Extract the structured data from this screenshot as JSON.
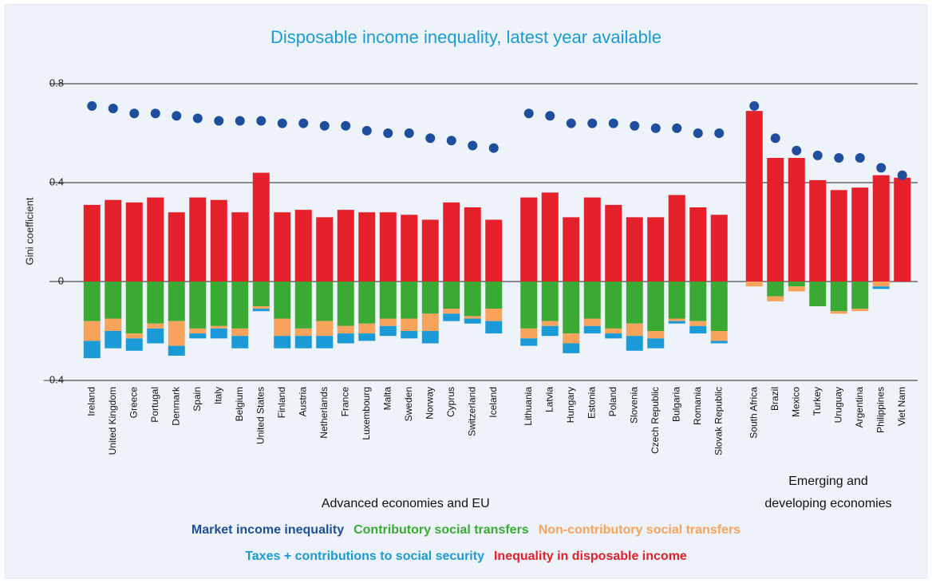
{
  "chart_data": {
    "type": "bar",
    "title": "Disposable income inequality, latest year available",
    "y_label": "Gini coefficient",
    "categories": [
      "Ireland",
      "United Kingdom",
      "Greece",
      "Portugal",
      "Denmark",
      "Spain",
      "Italy",
      "Belgium",
      "United States",
      "Finland",
      "Austria",
      "Netherlands",
      "France",
      "Luxembourg",
      "Malta",
      "Sweden",
      "Norway",
      "Cyprus",
      "Switzerland",
      "Iceland",
      null,
      "Lithuania",
      "Latvia",
      "Hungary",
      "Estonia",
      "Poland",
      "Slovenia",
      "Czech Republic",
      "Bulgaria",
      "Romania",
      "Slovak Republic",
      null,
      "South Africa",
      "Brazil",
      "Mexico",
      "Turkey",
      "Uruguay",
      "Argentina",
      "Philippines",
      "Viet Nam"
    ],
    "group_labels": [
      [
        "Advanced economies and EU"
      ],
      [
        "Emerging and",
        "developing economies"
      ]
    ],
    "ylim": [
      -0.4,
      0.85
    ],
    "yticks": [
      0.8,
      0.4,
      0,
      {
        "value": -0.4,
        "label": "–0.4"
      }
    ],
    "grid": true,
    "series": [
      {
        "name": "Market income inequality",
        "color": "#1f4e9c",
        "mark": "dot",
        "values": [
          0.71,
          0.7,
          0.68,
          0.68,
          0.67,
          0.66,
          0.65,
          0.65,
          0.65,
          0.64,
          0.64,
          0.63,
          0.63,
          0.61,
          0.6,
          0.6,
          0.58,
          0.57,
          0.55,
          0.54,
          null,
          0.68,
          0.67,
          0.64,
          0.64,
          0.64,
          0.63,
          0.62,
          0.62,
          0.6,
          0.6,
          null,
          0.71,
          0.58,
          0.53,
          0.51,
          0.5,
          0.5,
          0.46,
          0.43
        ]
      },
      {
        "name": "Contributory social transfers",
        "color": "#3aaa35",
        "mark": "stack",
        "values": [
          -0.16,
          -0.15,
          -0.21,
          -0.17,
          -0.16,
          -0.19,
          -0.18,
          -0.19,
          -0.1,
          -0.15,
          -0.19,
          -0.16,
          -0.18,
          -0.17,
          -0.15,
          -0.15,
          -0.13,
          -0.11,
          -0.14,
          -0.11,
          null,
          -0.19,
          -0.16,
          -0.21,
          -0.15,
          -0.19,
          -0.17,
          -0.2,
          -0.15,
          -0.16,
          -0.2,
          null,
          0,
          -0.06,
          -0.02,
          -0.1,
          -0.12,
          -0.11,
          0,
          0
        ]
      },
      {
        "name": "Non-contributory social transfers",
        "color": "#f7a35c",
        "mark": "stack",
        "values": [
          -0.08,
          -0.05,
          -0.02,
          -0.02,
          -0.1,
          -0.02,
          -0.01,
          -0.03,
          -0.01,
          -0.07,
          -0.03,
          -0.06,
          -0.03,
          -0.04,
          -0.03,
          -0.05,
          -0.07,
          -0.02,
          -0.01,
          -0.05,
          null,
          -0.04,
          -0.02,
          -0.04,
          -0.03,
          -0.02,
          -0.05,
          -0.03,
          -0.01,
          -0.02,
          -0.04,
          null,
          -0.02,
          -0.02,
          -0.02,
          0,
          -0.01,
          -0.01,
          -0.02,
          0
        ]
      },
      {
        "name": "Taxes + contributions to social security",
        "color": "#1a9ad6",
        "mark": "stack",
        "values": [
          -0.07,
          -0.07,
          -0.05,
          -0.06,
          -0.04,
          -0.02,
          -0.04,
          -0.05,
          -0.01,
          -0.05,
          -0.05,
          -0.05,
          -0.04,
          -0.03,
          -0.04,
          -0.03,
          -0.05,
          -0.03,
          -0.02,
          -0.05,
          null,
          -0.03,
          -0.04,
          -0.04,
          -0.03,
          -0.02,
          -0.06,
          -0.04,
          -0.01,
          -0.03,
          -0.01,
          null,
          0,
          0,
          0,
          0,
          0,
          0,
          -0.01,
          0
        ]
      },
      {
        "name": "Inequality in disposable income",
        "color": "#e4202a",
        "mark": "stack",
        "values": [
          0.31,
          0.33,
          0.32,
          0.34,
          0.28,
          0.34,
          0.33,
          0.28,
          0.44,
          0.28,
          0.29,
          0.26,
          0.29,
          0.28,
          0.28,
          0.27,
          0.25,
          0.32,
          0.3,
          0.25,
          null,
          0.34,
          0.36,
          0.26,
          0.34,
          0.31,
          0.26,
          0.26,
          0.35,
          0.3,
          0.27,
          null,
          0.69,
          0.5,
          0.5,
          0.41,
          0.37,
          0.38,
          0.43,
          0.42
        ]
      }
    ]
  }
}
